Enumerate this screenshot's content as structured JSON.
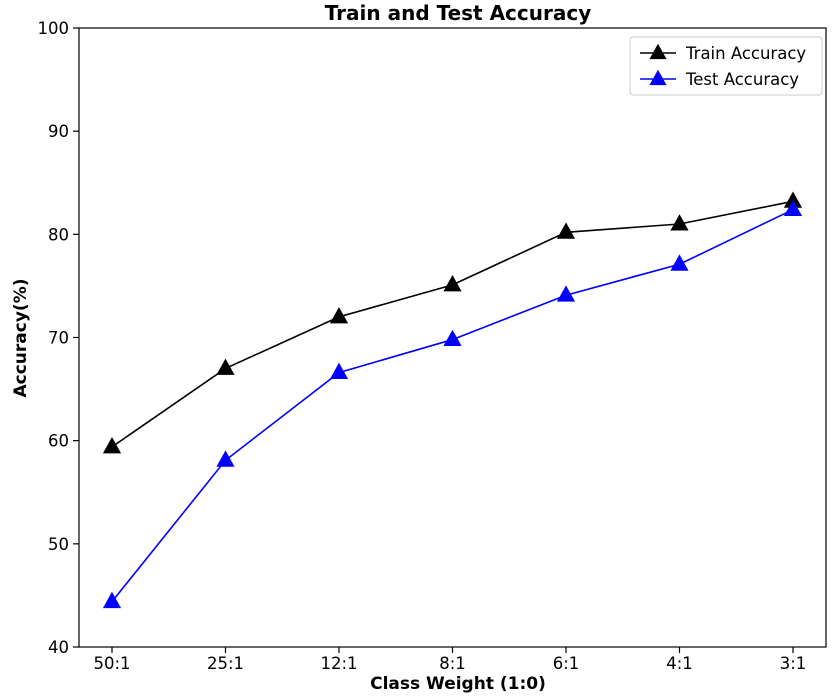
{
  "chart_data": {
    "type": "line",
    "title": "Train and Test Accuracy",
    "xlabel": "Class Weight (1:0)",
    "ylabel": "Accuracy(%)",
    "categories": [
      "50:1",
      "25:1",
      "12:1",
      "8:1",
      "6:1",
      "4:1",
      "3:1"
    ],
    "ylim": [
      40,
      100
    ],
    "yticks": [
      40,
      50,
      60,
      70,
      80,
      90,
      100
    ],
    "grid": false,
    "legend_position": "top-right",
    "marker": "triangle",
    "series": [
      {
        "name": "Train Accuracy",
        "color": "#000000",
        "values": [
          59.4,
          67.0,
          72.0,
          75.1,
          80.2,
          81.0,
          83.2
        ]
      },
      {
        "name": "Test Accuracy",
        "color": "#0000ff",
        "values": [
          44.4,
          58.1,
          66.6,
          69.8,
          74.1,
          77.1,
          82.4
        ]
      }
    ]
  }
}
